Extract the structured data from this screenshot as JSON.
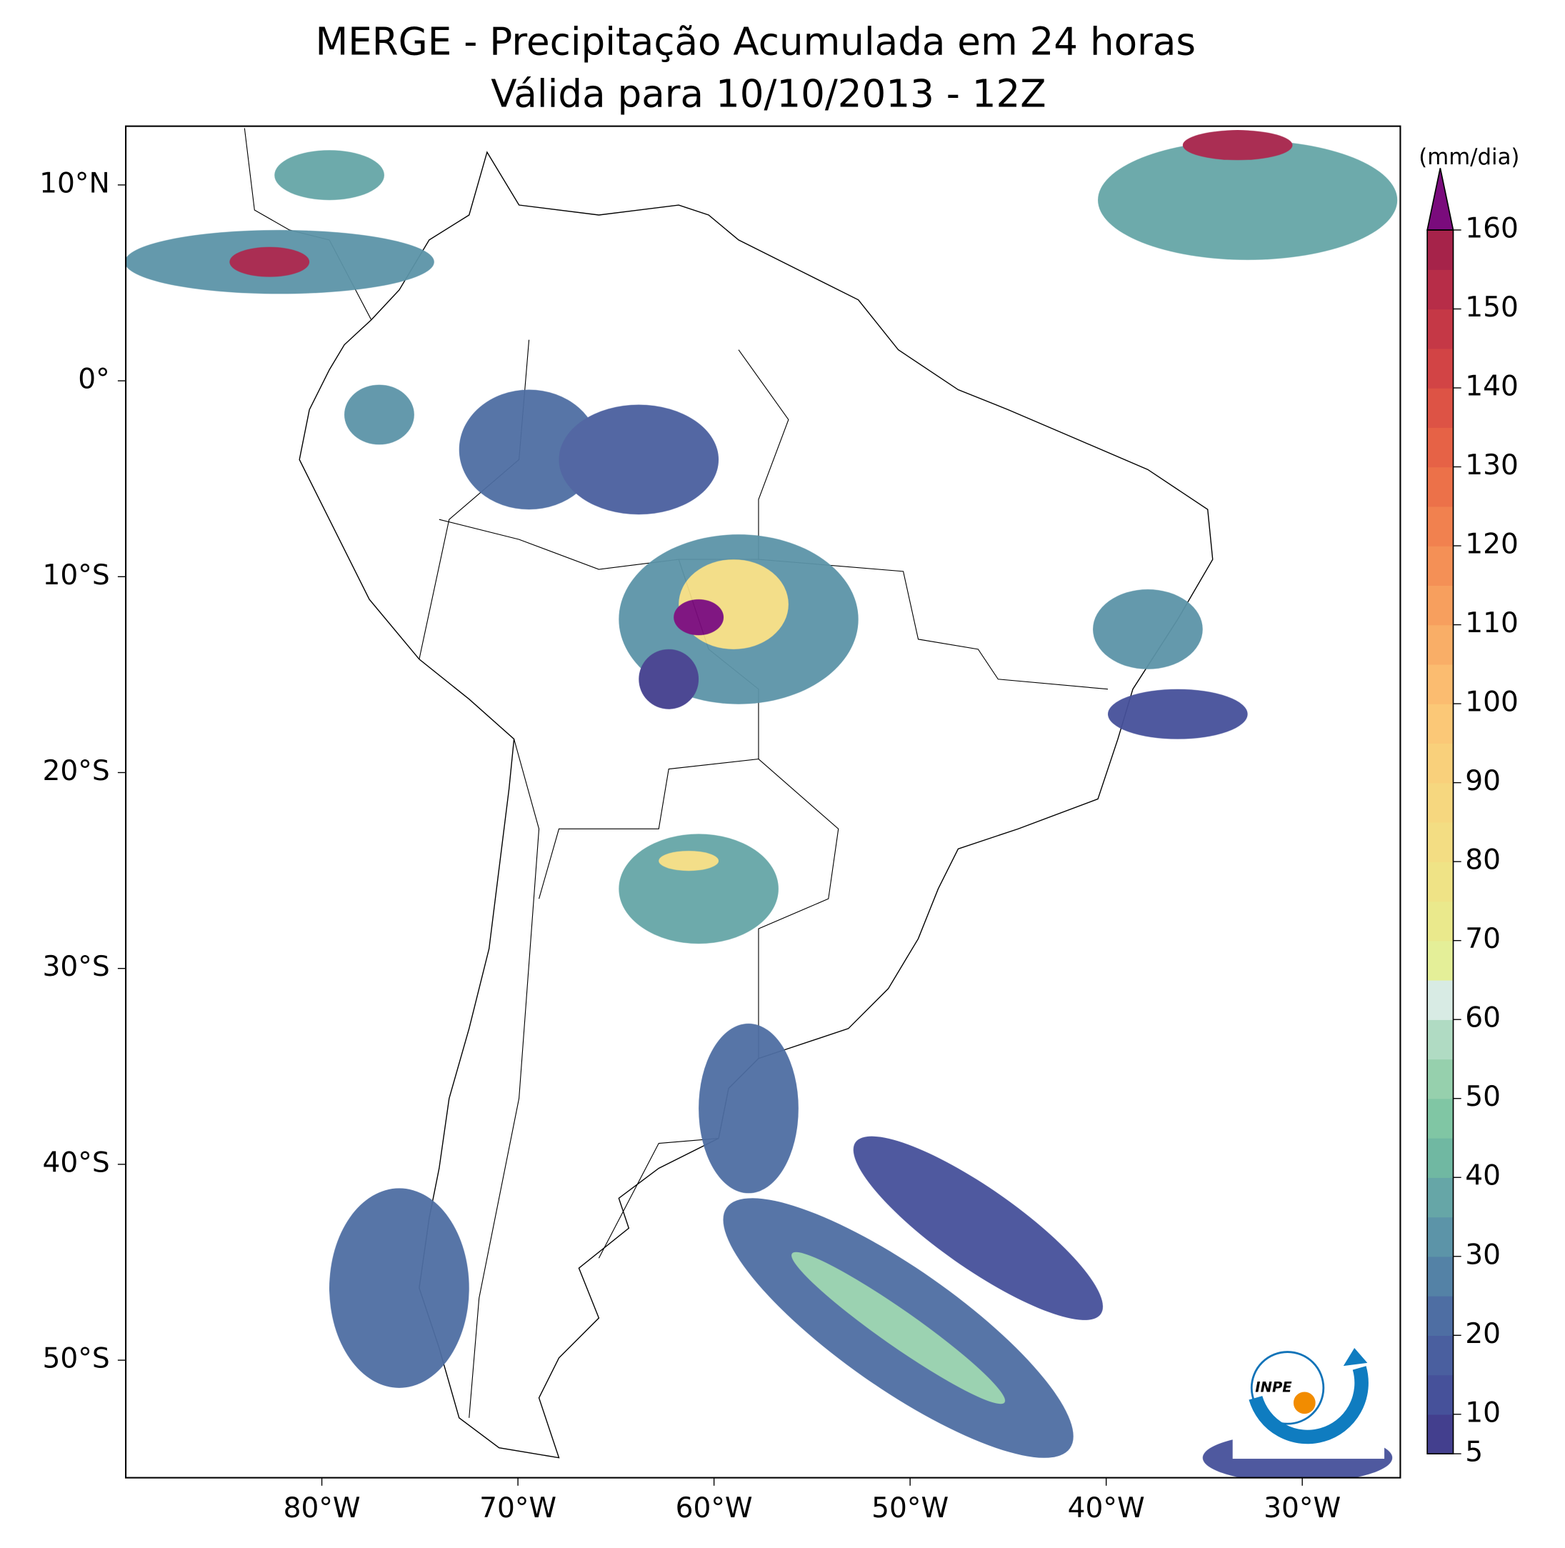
{
  "map": {
    "title": "MERGE - Precipitação Acumulada em 24 horas",
    "subtitle": "Válida para 10/10/2013 - 12Z",
    "xlim": [
      -90,
      -25
    ],
    "ylim": [
      -56,
      13
    ],
    "lon_ticks": [
      {
        "value": -80,
        "label": "80°W"
      },
      {
        "value": -70,
        "label": "70°W"
      },
      {
        "value": -60,
        "label": "60°W"
      },
      {
        "value": -50,
        "label": "50°W"
      },
      {
        "value": -40,
        "label": "40°W"
      },
      {
        "value": -30,
        "label": "30°W"
      }
    ],
    "lat_ticks": [
      {
        "value": 10,
        "label": "10°N"
      },
      {
        "value": 0,
        "label": "0°"
      },
      {
        "value": -10,
        "label": "10°S"
      },
      {
        "value": -20,
        "label": "20°S"
      },
      {
        "value": -30,
        "label": "30°S"
      },
      {
        "value": -40,
        "label": "40°S"
      },
      {
        "value": -50,
        "label": "50°S"
      }
    ],
    "logo": "INPE",
    "colorbar": {
      "label": "(mm/dia)",
      "range": [
        5,
        160
      ],
      "ticks": [
        5,
        10,
        20,
        30,
        40,
        50,
        60,
        70,
        80,
        90,
        100,
        110,
        120,
        130,
        140,
        150,
        160
      ],
      "bounds": [
        5,
        10,
        15,
        20,
        25,
        30,
        35,
        40,
        45,
        50,
        55,
        60,
        65,
        70,
        75,
        80,
        85,
        90,
        95,
        100,
        105,
        110,
        115,
        120,
        125,
        130,
        135,
        140,
        145,
        150,
        155,
        160
      ],
      "colors": [
        "#433f8e",
        "#46519a",
        "#4a5f9f",
        "#4e6ea3",
        "#5482a6",
        "#5c94a8",
        "#66a6a7",
        "#70b8a2",
        "#80c6a4",
        "#96d0ad",
        "#b0dbc3",
        "#d8ebe4",
        "#e4ef98",
        "#eae98c",
        "#efe386",
        "#f3dd83",
        "#f6d77f",
        "#f9d07b",
        "#fbc877",
        "#fbbc70",
        "#f9ae67",
        "#f79f5e",
        "#f49056",
        "#f1814f",
        "#ec7149",
        "#e66246",
        "#dd5345",
        "#d24445",
        "#c53846",
        "#b72d48",
        "#a6234a"
      ],
      "extend_color": "#7a0b7c"
    }
  }
}
